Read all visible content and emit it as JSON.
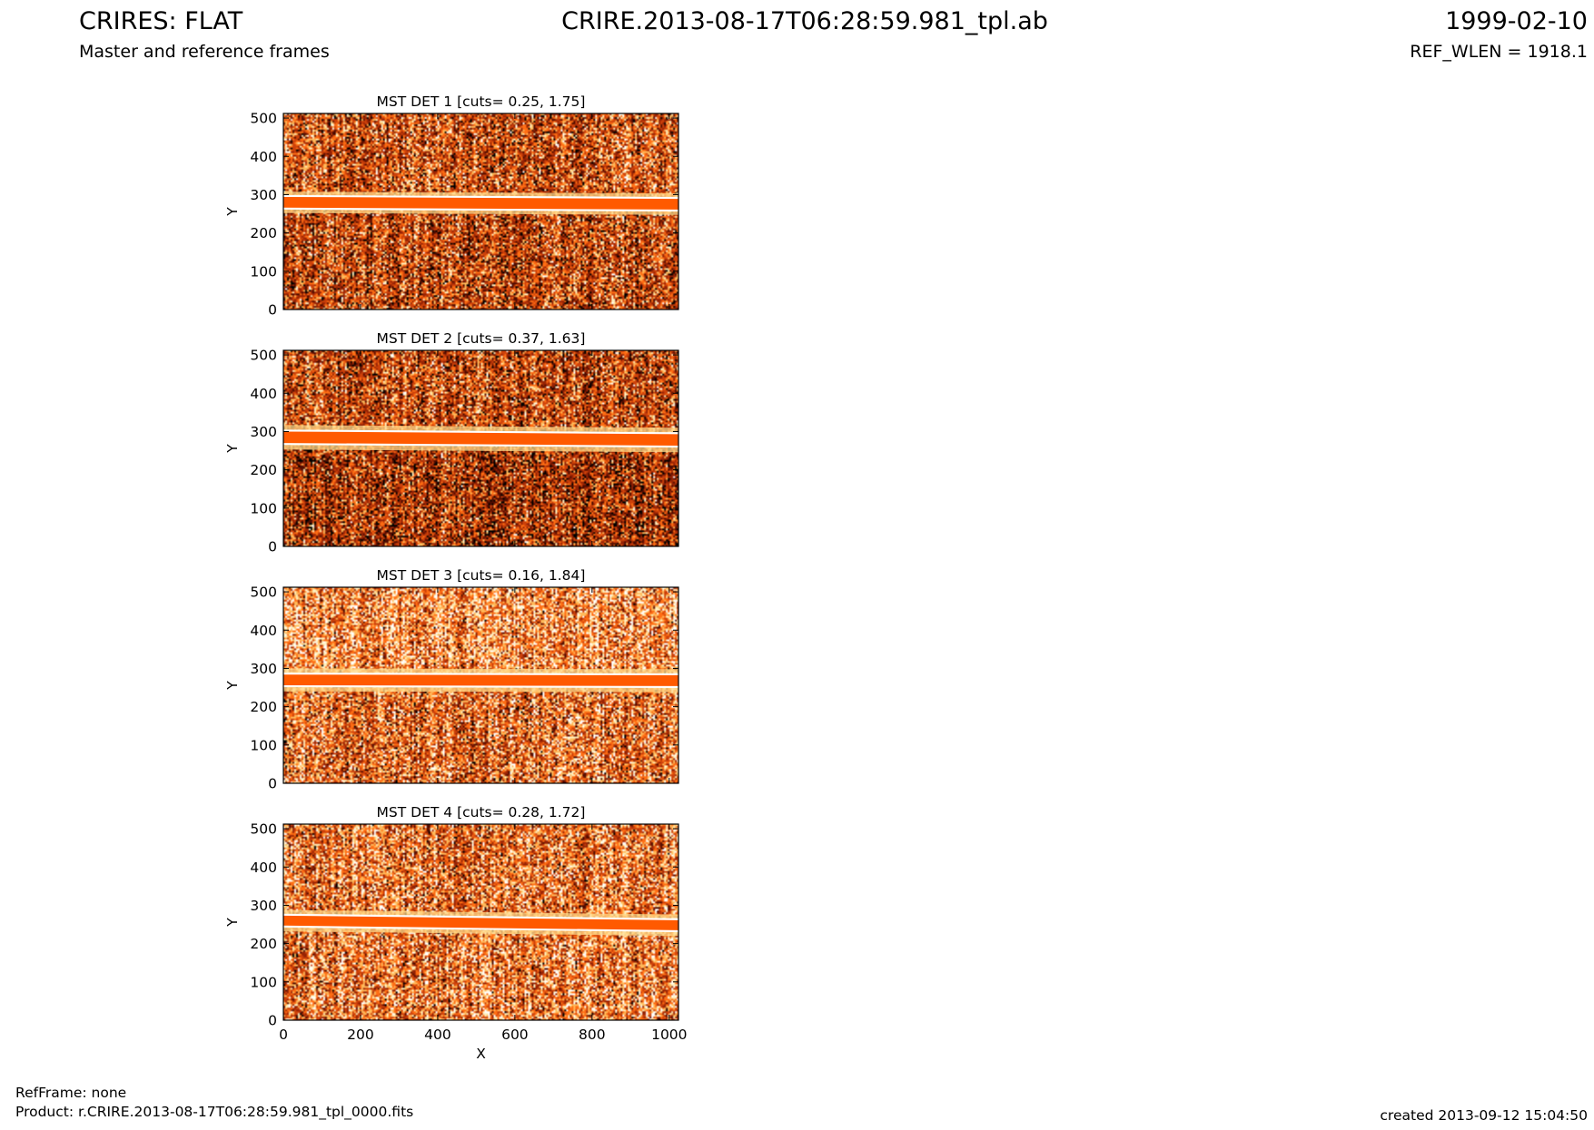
{
  "header": {
    "title": "CRIRES: FLAT",
    "subtitle": "Master and reference frames",
    "filename": "CRIRE.2013-08-17T06:28:59.981_tpl.ab",
    "date": "1999-02-10",
    "ref_wlen": "REF_WLEN = 1918.1"
  },
  "footer": {
    "ref_frame": "RefFrame: none",
    "product": "Product: r.CRIRE.2013-08-17T06:28:59.981_tpl_0000.fits",
    "created": "created 2013-09-12 15:04:50"
  },
  "colors": {
    "dark": "#6b1500",
    "mid": "#c43a05",
    "orange": "#ff5a00",
    "light": "#ffd98a",
    "white": "#ffffff"
  },
  "chart_data": [
    {
      "type": "heatmap",
      "title": "MST DET 1 [cuts= 0.25, 1.75]",
      "xlabel": "",
      "ylabel": "Y",
      "xlim": [
        0,
        1024
      ],
      "ylim": [
        0,
        512
      ],
      "xticks": [],
      "yticks": [
        0,
        100,
        200,
        300,
        400,
        500
      ],
      "band": {
        "y_left": 280,
        "y_right": 275,
        "halfwidth": 14
      },
      "halo_halfwidth": 28,
      "upper_brightness": 0.45,
      "lower_brightness": 0.4
    },
    {
      "type": "heatmap",
      "title": "MST DET 2 [cuts= 0.37, 1.63]",
      "xlabel": "",
      "ylabel": "Y",
      "xlim": [
        0,
        1024
      ],
      "ylim": [
        0,
        512
      ],
      "xticks": [],
      "yticks": [
        0,
        100,
        200,
        300,
        400,
        500
      ],
      "band": {
        "y_left": 285,
        "y_right": 278,
        "halfwidth": 15
      },
      "halo_halfwidth": 32,
      "upper_brightness": 0.4,
      "lower_brightness": 0.3
    },
    {
      "type": "heatmap",
      "title": "MST DET 3 [cuts= 0.16, 1.84]",
      "xlabel": "",
      "ylabel": "Y",
      "xlim": [
        0,
        1024
      ],
      "ylim": [
        0,
        512
      ],
      "xticks": [],
      "yticks": [
        0,
        100,
        200,
        300,
        400,
        500
      ],
      "band": {
        "y_left": 270,
        "y_right": 268,
        "halfwidth": 14
      },
      "halo_halfwidth": 30,
      "upper_brightness": 0.7,
      "lower_brightness": 0.55
    },
    {
      "type": "heatmap",
      "title": "MST DET 4 [cuts= 0.28, 1.72]",
      "xlabel": "X",
      "ylabel": "Y",
      "xlim": [
        0,
        1024
      ],
      "ylim": [
        0,
        512
      ],
      "xticks": [
        0,
        200,
        400,
        600,
        800,
        1000
      ],
      "yticks": [
        0,
        100,
        200,
        300,
        400,
        500
      ],
      "band": {
        "y_left": 260,
        "y_right": 248,
        "halfwidth": 13
      },
      "halo_halfwidth": 28,
      "upper_brightness": 0.6,
      "lower_brightness": 0.62
    }
  ]
}
